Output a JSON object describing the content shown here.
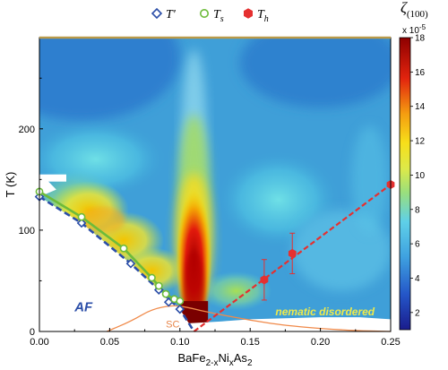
{
  "chart_data": {
    "type": "heatmap",
    "title": "",
    "xlabel": {
      "pre": "BaFe",
      "sub1": "2-x",
      "mid": "Ni",
      "sub2": "x",
      "post": "As",
      "sub3": "2"
    },
    "ylabel": "T (K)",
    "xlim": [
      0,
      0.25
    ],
    "ylim": [
      0,
      290
    ],
    "x_ticks": [
      "0.00",
      "0.05",
      "0.10",
      "0.15",
      "0.20",
      "0.25"
    ],
    "x_tick_values": [
      0,
      0.05,
      0.1,
      0.15,
      0.2,
      0.25
    ],
    "y_ticks": [
      "0",
      "100",
      "200"
    ],
    "y_tick_values": [
      0,
      100,
      200
    ],
    "colorbar": {
      "label": "ζ",
      "label_sub": "(100)",
      "scale_text": "x 10",
      "scale_exp": "-5",
      "range": [
        1,
        18
      ],
      "ticks": [
        "2",
        "4",
        "6",
        "8",
        "10",
        "12",
        "14",
        "16",
        "18"
      ],
      "tick_values": [
        2,
        4,
        6,
        8,
        10,
        12,
        14,
        16,
        18
      ]
    },
    "legend": {
      "placement": "top",
      "entries": [
        {
          "symbol": "diamond",
          "label": "T'",
          "color": "#2b4ea8"
        },
        {
          "symbol": "circle",
          "label": "Ts",
          "label_main": "T",
          "label_sub": "s",
          "color": "#6dbb3a"
        },
        {
          "symbol": "hexagon",
          "label": "Th",
          "label_main": "T",
          "label_sub": "h",
          "color": "#e53030"
        }
      ]
    },
    "series": [
      {
        "key": "T_prime",
        "marker": "diamond",
        "color": "#2b4ea8",
        "points": [
          [
            0.0,
            133
          ],
          [
            0.03,
            107
          ],
          [
            0.065,
            67
          ],
          [
            0.085,
            41
          ],
          [
            0.092,
            29
          ],
          [
            0.1,
            22
          ]
        ]
      },
      {
        "key": "T_s",
        "marker": "circle",
        "color": "#6dbb3a",
        "points": [
          [
            0.0,
            138
          ],
          [
            0.03,
            113
          ],
          [
            0.06,
            82
          ],
          [
            0.08,
            53
          ],
          [
            0.085,
            45
          ],
          [
            0.09,
            37
          ],
          [
            0.096,
            32
          ],
          [
            0.1,
            30
          ]
        ]
      },
      {
        "key": "T_h",
        "marker": "hexagon",
        "color": "#e53030",
        "points": [
          [
            0.16,
            51,
            20
          ],
          [
            0.18,
            77,
            20
          ],
          [
            0.25,
            145,
            0
          ]
        ]
      }
    ],
    "phase_lines": {
      "af_boundary": [
        [
          0.0,
          133
        ],
        [
          0.03,
          107
        ],
        [
          0.065,
          67
        ],
        [
          0.085,
          41
        ],
        [
          0.1,
          22
        ],
        [
          0.11,
          0
        ]
      ],
      "ts_boundary": [
        [
          0.0,
          138
        ],
        [
          0.03,
          113
        ],
        [
          0.06,
          82
        ],
        [
          0.08,
          53
        ],
        [
          0.09,
          37
        ],
        [
          0.1,
          28
        ]
      ],
      "th_line": [
        [
          0.11,
          0
        ],
        [
          0.25,
          145
        ]
      ],
      "sc_dome": [
        [
          0.048,
          0
        ],
        [
          0.065,
          10
        ],
        [
          0.08,
          22
        ],
        [
          0.095,
          26
        ],
        [
          0.105,
          24
        ],
        [
          0.12,
          19
        ],
        [
          0.15,
          11
        ],
        [
          0.18,
          5
        ],
        [
          0.22,
          1
        ],
        [
          0.25,
          0
        ]
      ]
    },
    "annotations": {
      "af": "AF",
      "sc": "SC",
      "nematic": "nematic disordered"
    }
  }
}
